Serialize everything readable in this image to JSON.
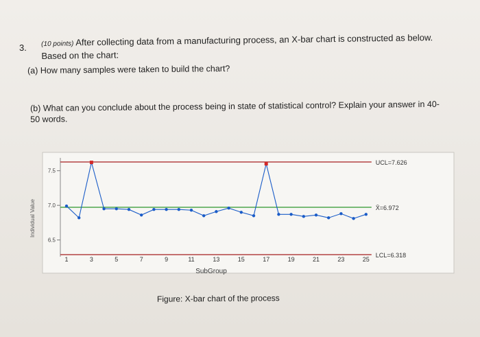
{
  "question": {
    "number": "3.",
    "points": "(10 points)",
    "text": "After collecting data from a manufacturing process, an X-bar chart is constructed as below. Based on the chart:",
    "part_a": "(a) How many samples were taken to build the chart?",
    "part_b": "(b) What can you conclude about the process being in state of statistical control? Explain your answer in 40-50 words."
  },
  "figure_caption": "Figure: X-bar chart of the process",
  "chart_data": {
    "type": "line",
    "xlabel": "SubGroup",
    "ylabel": "Individual Value",
    "x_ticks": [
      "1",
      "3",
      "5",
      "7",
      "9",
      "11",
      "13",
      "15",
      "17",
      "19",
      "21",
      "23",
      "25"
    ],
    "y_ticks": [
      "6.5",
      "7.0",
      "7.5"
    ],
    "ylim": [
      6.318,
      7.626
    ],
    "x": [
      1,
      2,
      3,
      4,
      5,
      6,
      7,
      8,
      9,
      10,
      11,
      12,
      13,
      14,
      15,
      16,
      17,
      18,
      19,
      20,
      21,
      22,
      23,
      24,
      25
    ],
    "values": [
      6.99,
      6.82,
      7.62,
      6.95,
      6.95,
      6.94,
      6.86,
      6.94,
      6.94,
      6.94,
      6.93,
      6.85,
      6.91,
      6.96,
      6.9,
      6.85,
      7.6,
      6.87,
      6.87,
      6.84,
      6.86,
      6.82,
      6.88,
      6.81,
      6.87
    ],
    "out_of_control": [
      3,
      17
    ],
    "ucl": {
      "label": "UCL=7.626",
      "value": 7.626
    },
    "center": {
      "label": "X̄=6.972",
      "value": 6.972
    },
    "lcl": {
      "label": "LCL=6.318",
      "value": 6.318
    },
    "colors": {
      "line": "#1a5cc8",
      "limit": "#b44242",
      "center": "#4ea64c",
      "alarm": "#d22828"
    }
  }
}
